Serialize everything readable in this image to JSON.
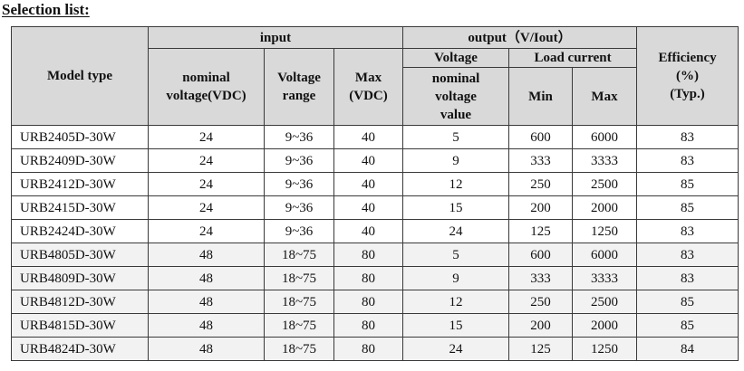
{
  "page_title": "Selection list:",
  "table": {
    "headers": {
      "model_type": "Model type",
      "input": "input",
      "output": "output（V/Iout）",
      "efficiency": [
        "Efficiency",
        "(%)",
        "(Typ.)"
      ],
      "output_voltage": "Voltage",
      "load_current": "Load current",
      "nominal_voltage": [
        "nominal",
        "voltage(VDC)"
      ],
      "voltage_range": [
        "Voltage",
        "range"
      ],
      "max_vdc": [
        "Max",
        "(VDC)"
      ],
      "nominal_voltage_value": [
        "nominal",
        "voltage",
        "value"
      ],
      "min": "Min",
      "max": "Max"
    },
    "rows": [
      {
        "model": "URB2405D-30W",
        "nominal_v": "24",
        "range": "9~36",
        "max_vdc": "40",
        "out_v": "5",
        "i_min": "600",
        "i_max": "6000",
        "eff": "83"
      },
      {
        "model": "URB2409D-30W",
        "nominal_v": "24",
        "range": "9~36",
        "max_vdc": "40",
        "out_v": "9",
        "i_min": "333",
        "i_max": "3333",
        "eff": "83"
      },
      {
        "model": "URB2412D-30W",
        "nominal_v": "24",
        "range": "9~36",
        "max_vdc": "40",
        "out_v": "12",
        "i_min": "250",
        "i_max": "2500",
        "eff": "85"
      },
      {
        "model": "URB2415D-30W",
        "nominal_v": "24",
        "range": "9~36",
        "max_vdc": "40",
        "out_v": "15",
        "i_min": "200",
        "i_max": "2000",
        "eff": "85"
      },
      {
        "model": "URB2424D-30W",
        "nominal_v": "24",
        "range": "9~36",
        "max_vdc": "40",
        "out_v": "24",
        "i_min": "125",
        "i_max": "1250",
        "eff": "83"
      },
      {
        "model": "URB4805D-30W",
        "nominal_v": "48",
        "range": "18~75",
        "max_vdc": "80",
        "out_v": "5",
        "i_min": "600",
        "i_max": "6000",
        "eff": "83"
      },
      {
        "model": "URB4809D-30W",
        "nominal_v": "48",
        "range": "18~75",
        "max_vdc": "80",
        "out_v": "9",
        "i_min": "333",
        "i_max": "3333",
        "eff": "83"
      },
      {
        "model": "URB4812D-30W",
        "nominal_v": "48",
        "range": "18~75",
        "max_vdc": "80",
        "out_v": "12",
        "i_min": "250",
        "i_max": "2500",
        "eff": "85"
      },
      {
        "model": "URB4815D-30W",
        "nominal_v": "48",
        "range": "18~75",
        "max_vdc": "80",
        "out_v": "15",
        "i_min": "200",
        "i_max": "2000",
        "eff": "85"
      },
      {
        "model": "URB4824D-30W",
        "nominal_v": "48",
        "range": "18~75",
        "max_vdc": "80",
        "out_v": "24",
        "i_min": "125",
        "i_max": "1250",
        "eff": "84"
      }
    ]
  }
}
